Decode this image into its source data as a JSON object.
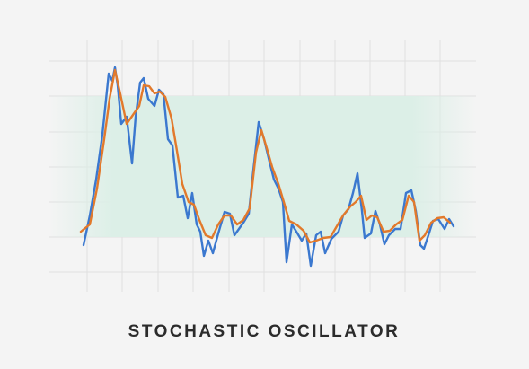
{
  "chart_data": {
    "type": "line",
    "title": "STOCHASTIC OSCILLATOR",
    "xlim": [
      0,
      415
    ],
    "ylim": [
      0,
      261
    ],
    "zone": [
      52,
      209
    ],
    "series": [
      {
        "color": "#3b78cf",
        "x": [
          3,
          10,
          17,
          24,
          31,
          35,
          38,
          41,
          45,
          51,
          57,
          61,
          66,
          70,
          75,
          82,
          87,
          92,
          97,
          102,
          108,
          114,
          119,
          124,
          129,
          133,
          137,
          142,
          147,
          153,
          160,
          166,
          171,
          176,
          181,
          187,
          192,
          198,
          204,
          210,
          215,
          220,
          225,
          229,
          235,
          240,
          246,
          251,
          256,
          262,
          267,
          272,
          279,
          287,
          292,
          298,
          303,
          308,
          313,
          316,
          323,
          328,
          333,
          338,
          343,
          350,
          356,
          362,
          368,
          373,
          378,
          382,
          387,
          392,
          398,
          405,
          410,
          415
        ],
        "values": [
          43,
          76,
          116,
          166,
          234,
          226,
          241,
          221,
          178,
          186,
          134,
          186,
          224,
          229,
          206,
          198,
          216,
          211,
          161,
          154,
          96,
          98,
          73,
          101,
          66,
          58,
          31,
          48,
          34,
          56,
          80,
          78,
          54,
          61,
          68,
          78,
          126,
          180,
          161,
          136,
          116,
          106,
          91,
          24,
          66,
          58,
          48,
          56,
          20,
          54,
          58,
          34,
          50,
          58,
          76,
          83,
          101,
          123,
          81,
          51,
          56,
          81,
          66,
          44,
          54,
          61,
          61,
          101,
          104,
          81,
          43,
          39,
          54,
          70,
          72,
          61,
          72,
          64
        ]
      },
      {
        "color": "#e2792b",
        "x": [
          0,
          10,
          18,
          26,
          32,
          38,
          44,
          51,
          58,
          65,
          70,
          76,
          82,
          88,
          94,
          101,
          107,
          113,
          120,
          126,
          132,
          139,
          146,
          153,
          160,
          167,
          174,
          181,
          188,
          195,
          201,
          207,
          213,
          220,
          226,
          232,
          240,
          248,
          255,
          262,
          270,
          278,
          285,
          292,
          300,
          306,
          312,
          318,
          324,
          330,
          337,
          344,
          351,
          358,
          365,
          371,
          377,
          383,
          390,
          397,
          404,
          411
        ],
        "values": [
          58,
          66,
          106,
          161,
          206,
          238,
          211,
          178,
          188,
          198,
          221,
          220,
          212,
          214,
          208,
          184,
          148,
          111,
          91,
          88,
          71,
          54,
          51,
          66,
          76,
          76,
          66,
          71,
          84,
          146,
          171,
          151,
          130,
          111,
          91,
          70,
          66,
          59,
          46,
          48,
          51,
          52,
          64,
          76,
          86,
          91,
          98,
          71,
          76,
          74,
          58,
          59,
          66,
          71,
          98,
          91,
          48,
          54,
          68,
          73,
          74,
          68
        ]
      }
    ]
  }
}
